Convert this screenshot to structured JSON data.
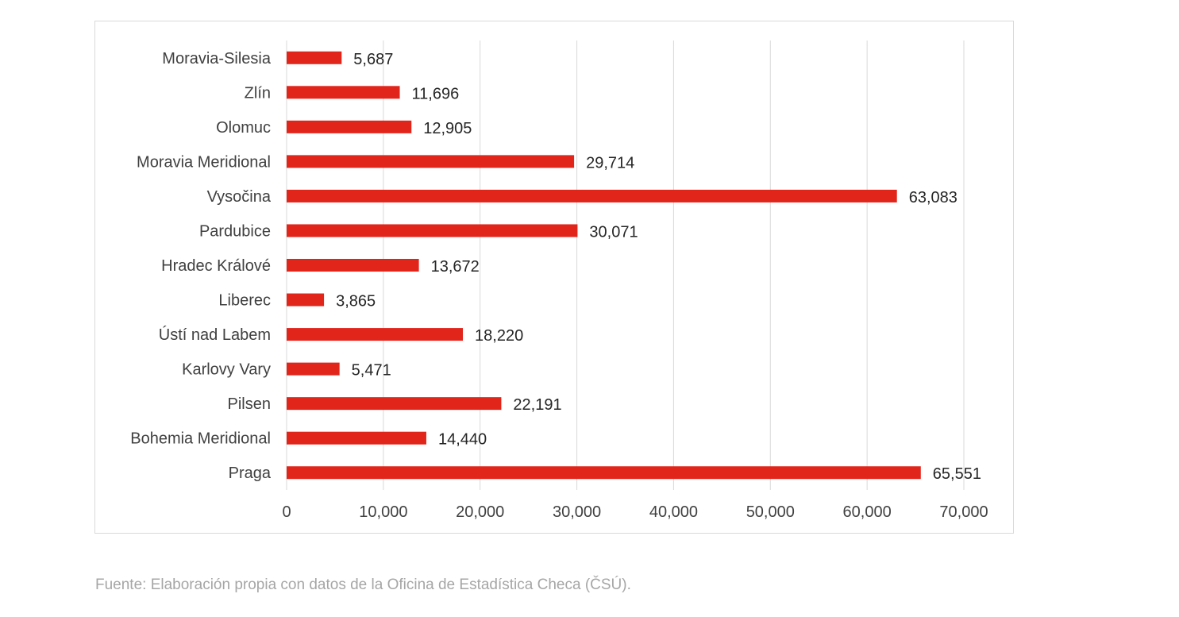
{
  "chart_data": {
    "type": "bar",
    "orientation": "horizontal",
    "categories": [
      "Moravia-Silesia",
      "Zlín",
      "Olomuc",
      "Moravia Meridional",
      "Vysočina",
      "Pardubice",
      "Hradec Králové",
      "Liberec",
      "Ústí nad Labem",
      "Karlovy Vary",
      "Pilsen",
      "Bohemia Meridional",
      "Praga"
    ],
    "values": [
      5687,
      11696,
      12905,
      29714,
      63083,
      30071,
      13672,
      3865,
      18220,
      5471,
      22191,
      14440,
      65551
    ],
    "value_labels": [
      "5,687",
      "11,696",
      "12,905",
      "29,714",
      "63,083",
      "30,071",
      "13,672",
      "3,865",
      "18,220",
      "5,471",
      "22,191",
      "14,440",
      "65,551"
    ],
    "xlim": [
      0,
      70000
    ],
    "x_ticks": [
      0,
      10000,
      20000,
      30000,
      40000,
      50000,
      60000,
      70000
    ],
    "x_tick_labels": [
      "0",
      "10,000",
      "20,000",
      "30,000",
      "40,000",
      "50,000",
      "60,000",
      "70,000"
    ],
    "grid": "vertical",
    "bar_color": "#e1251b",
    "title": "",
    "xlabel": "",
    "ylabel": ""
  },
  "source_note": "Fuente: Elaboración propia con datos de la Oficina de Estadística Checa (ČSÚ)."
}
